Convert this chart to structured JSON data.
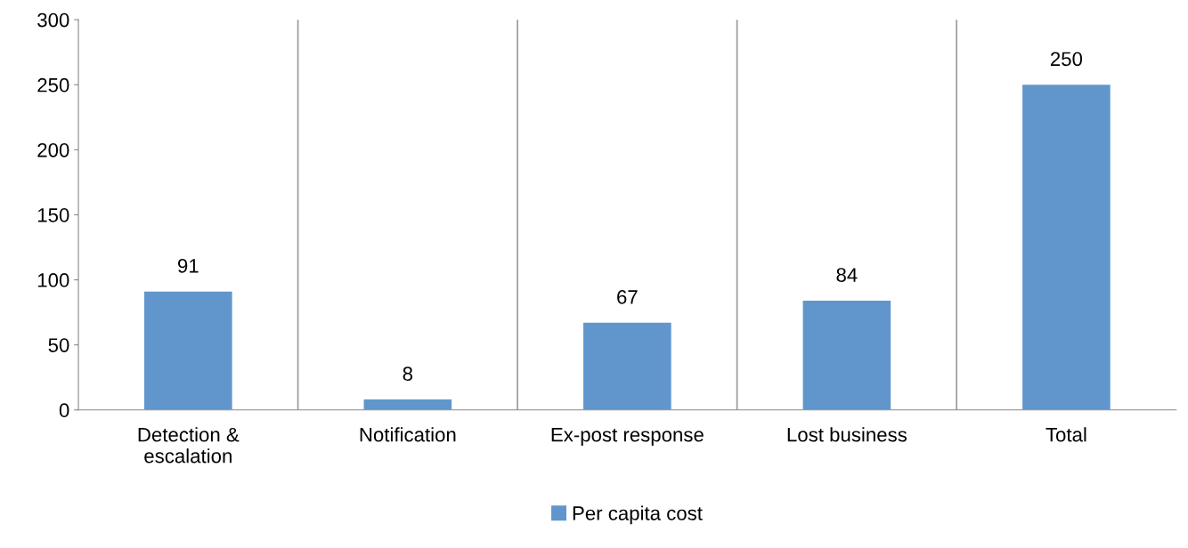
{
  "chart_data": {
    "type": "bar",
    "categories": [
      "Detection &\nescalation",
      "Notification",
      "Ex-post response",
      "Lost business",
      "Total"
    ],
    "series": [
      {
        "name": "Per capita cost",
        "color": "#6196cc",
        "values": [
          91,
          8,
          67,
          84,
          250
        ]
      }
    ],
    "ylim": [
      0,
      300
    ],
    "yticks": [
      0,
      50,
      100,
      150,
      200,
      250,
      300
    ],
    "grid": "x",
    "legend": "bottom",
    "data_labels": true
  }
}
